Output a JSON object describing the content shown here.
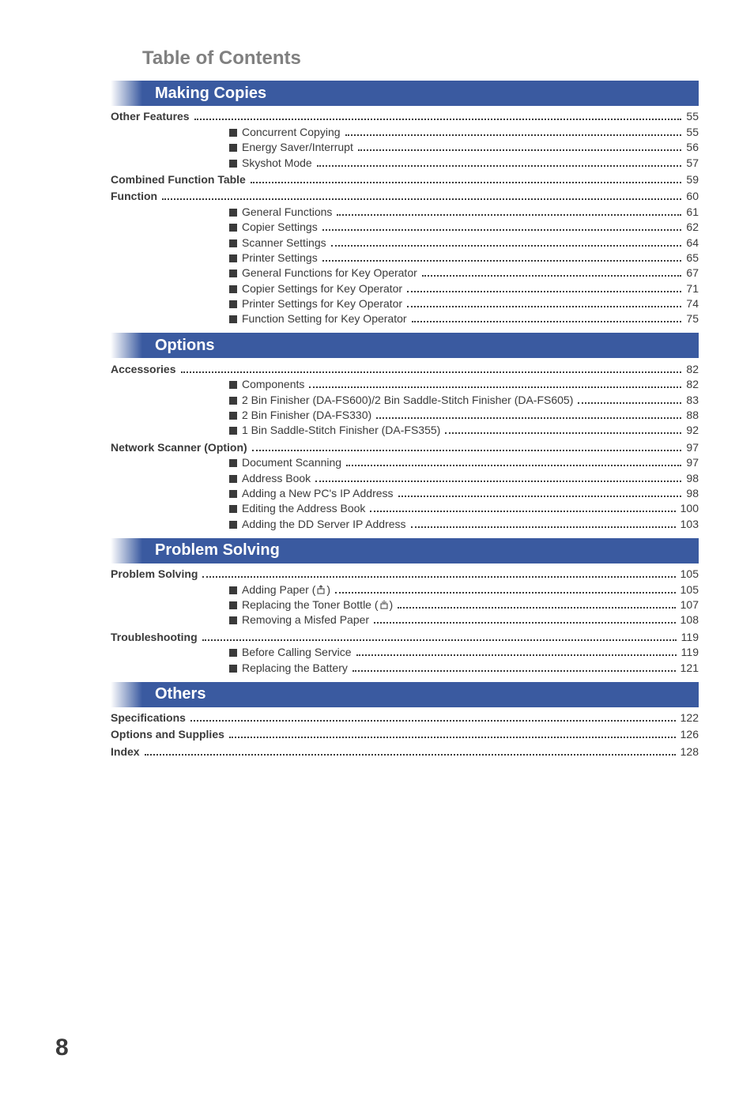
{
  "colors": {
    "bar": "#3a5aa0",
    "text": "#3a3a3a",
    "title": "#808080",
    "bg": "#ffffff"
  },
  "typography": {
    "title_pt": 24,
    "bar_pt": 20,
    "body_pt": 14,
    "pagenum_pt": 30
  },
  "tocTitle": "Table of Contents",
  "pageNumber": "8",
  "sections": [
    {
      "bar": "Making Copies",
      "groups": [
        {
          "heading": {
            "label": "Other Features",
            "page": "55"
          },
          "entries": [
            {
              "label": "Concurrent Copying",
              "page": "55"
            },
            {
              "label": "Energy Saver/Interrupt",
              "page": "56"
            },
            {
              "label": "Skyshot Mode",
              "page": "57"
            }
          ]
        },
        {
          "heading": {
            "label": "Combined Function Table",
            "page": "59"
          },
          "entries": []
        },
        {
          "heading": {
            "label": "Function",
            "page": "60"
          },
          "entries": [
            {
              "label": "General Functions",
              "page": "61"
            },
            {
              "label": "Copier Settings",
              "page": "62"
            },
            {
              "label": "Scanner Settings",
              "page": "64"
            },
            {
              "label": "Printer Settings",
              "page": "65"
            },
            {
              "label": "General Functions for Key Operator",
              "page": "67"
            },
            {
              "label": "Copier Settings for Key Operator",
              "page": "71"
            },
            {
              "label": "Printer Settings for Key Operator",
              "page": "74"
            },
            {
              "label": "Function Setting for Key Operator",
              "page": "75"
            }
          ]
        }
      ]
    },
    {
      "bar": "Options",
      "groups": [
        {
          "heading": {
            "label": "Accessories",
            "page": "82"
          },
          "entries": [
            {
              "label": "Components",
              "page": "82"
            },
            {
              "label": "2 Bin Finisher (DA-FS600)/2 Bin Saddle-Stitch Finisher (DA-FS605)",
              "page": "83"
            },
            {
              "label": "2 Bin Finisher (DA-FS330)",
              "page": "88"
            },
            {
              "label": "1 Bin Saddle-Stitch Finisher (DA-FS355)",
              "page": "92"
            }
          ]
        },
        {
          "heading": {
            "label": "Network Scanner (Option)",
            "page": "97"
          },
          "entries": [
            {
              "label": "Document Scanning",
              "page": "97"
            },
            {
              "label": "Address Book",
              "page": "98"
            },
            {
              "label": "Adding a New PC's IP Address",
              "page": "98"
            },
            {
              "label": "Editing the Address Book",
              "page": "100"
            },
            {
              "label": "Adding the DD Server IP Address",
              "page": "103"
            }
          ]
        }
      ]
    },
    {
      "bar": "Problem Solving",
      "groups": [
        {
          "heading": {
            "label": "Problem Solving",
            "page": "105"
          },
          "entries": [
            {
              "label": "Adding Paper (",
              "icon": "paper",
              "labelAfter": ")",
              "page": "105"
            },
            {
              "label": "Replacing the Toner Bottle (",
              "icon": "toner",
              "labelAfter": ")",
              "page": "107"
            },
            {
              "label": "Removing a Misfed Paper",
              "page": "108"
            }
          ]
        },
        {
          "heading": {
            "label": "Troubleshooting",
            "page": "119"
          },
          "entries": [
            {
              "label": "Before Calling Service",
              "page": "119"
            },
            {
              "label": "Replacing the Battery",
              "page": "121"
            }
          ]
        }
      ]
    },
    {
      "bar": "Others",
      "groups": [
        {
          "heading": {
            "label": "Specifications",
            "page": "122"
          },
          "entries": []
        },
        {
          "heading": {
            "label": "Options and Supplies",
            "page": "126"
          },
          "entries": []
        },
        {
          "heading": {
            "label": "Index",
            "page": "128"
          },
          "entries": []
        }
      ]
    }
  ]
}
